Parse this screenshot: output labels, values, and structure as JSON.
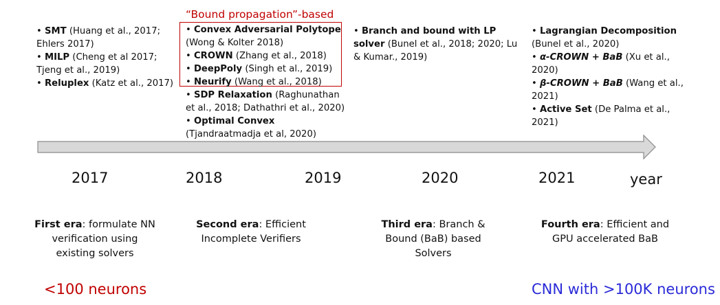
{
  "bracket_label": "“Bound propagation”-based",
  "columns": [
    {
      "id": "2017",
      "items": [
        {
          "name": "SMT",
          "ref": "(Huang et al., 2017; Ehlers 2017)"
        },
        {
          "name": "MILP",
          "ref": "(Cheng et al 2017; Tjeng et al., 2019)"
        },
        {
          "name": "Reluplex",
          "ref": "(Katz et al., 2017)"
        }
      ]
    },
    {
      "id": "2018",
      "items": [
        {
          "name": "Convex Adversarial Polytope",
          "ref": "(Wong & Kolter 2018)"
        },
        {
          "name": "CROWN",
          "ref": "(Zhang et al., 2018)"
        },
        {
          "name": "DeepPoly",
          "ref": "(Singh et al., 2019)"
        },
        {
          "name": "Neurify",
          "ref": "(Wang et al., 2018)"
        },
        {
          "name": "SDP Relaxation",
          "ref": "(Raghunathan et al., 2018; Dathathri et al., 2020)"
        },
        {
          "name": "Optimal Convex",
          "ref": "(Tjandraatmadja et al, 2020)"
        }
      ]
    },
    {
      "id": "2020",
      "items": [
        {
          "name": "Branch and bound with LP solver",
          "ref": "(Bunel et al., 2018; 2020; Lu & Kumar., 2019)"
        }
      ]
    },
    {
      "id": "2021",
      "items": [
        {
          "name": " Lagrangian Decomposition",
          "ref": "(Bunel et al., 2020)"
        },
        {
          "name": "α-CROWN + BaB",
          "ref": "(Xu et al., 2020)"
        },
        {
          "name": "β-CROWN + BaB",
          "ref": "(Wang et al., 2021)"
        },
        {
          "name": "Active Set",
          "ref": "(De Palma et al., 2021)"
        }
      ]
    }
  ],
  "years": [
    "2017",
    "2018",
    "2019",
    "2020",
    "2021"
  ],
  "axis_label": "year",
  "eras": [
    {
      "title": "First era",
      "desc": ": formulate NN verification using existing solvers"
    },
    {
      "title": "Second era",
      "desc": ": Efficient Incomplete Verifiers"
    },
    {
      "title": "Third era",
      "desc": ": Branch & Bound (BaB) based Solvers"
    },
    {
      "title": "Fourth era",
      "desc": ": Efficient and GPU accelerated BaB"
    }
  ],
  "left_note": "<100 neurons",
  "right_note": "CNN with >100K neurons",
  "colors": {
    "red": "#c00000",
    "blue": "#2a2ad8",
    "arrow_fill": "#d9d9d9",
    "arrow_stroke": "#8a8a8a"
  }
}
